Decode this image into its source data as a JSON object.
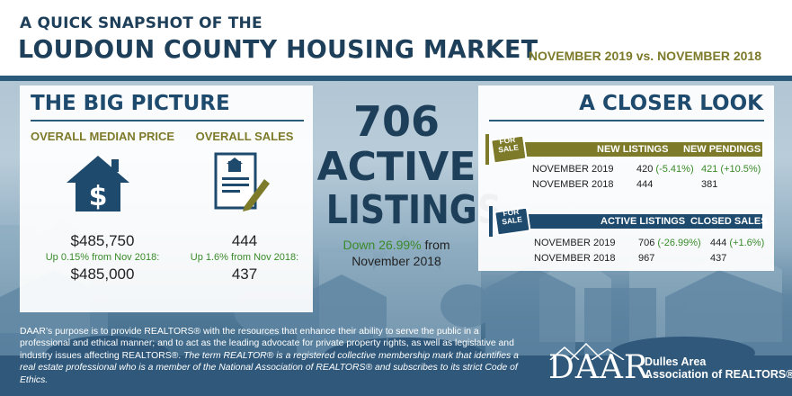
{
  "header": {
    "subtitle": "A QUICK SNAPSHOT OF THE",
    "title": "LOUDOUN COUNTY HOUSING MARKET",
    "date_range": "NOVEMBER 2019 vs. NOVEMBER 2018"
  },
  "big_picture": {
    "title": "THE BIG PICTURE",
    "median_price": {
      "label": "OVERALL MEDIAN PRICE",
      "current": "$485,750",
      "change_note": "Up 0.15% from Nov 2018:",
      "previous": "$485,000"
    },
    "sales": {
      "label": "OVERALL SALES",
      "current": "444",
      "change_note": "Up 1.6% from Nov 2018:",
      "previous": "437"
    }
  },
  "active_listings": {
    "number": "706",
    "line1": "ACTIVE",
    "line2": "LISTINGS",
    "change": "Down 26.99%",
    "from_word": " from",
    "period": "November 2018"
  },
  "closer_look": {
    "title": "A CLOSER LOOK",
    "sign_text": "FOR SALE",
    "group1": {
      "col1": "NEW LISTINGS",
      "col2": "NEW PENDINGS",
      "rows": [
        {
          "period": "NOVEMBER  2019",
          "v1": "420 (-5.41%)",
          "v2": "421 (+10.5%)"
        },
        {
          "period": "NOVEMBER  2018",
          "v1": "444",
          "v2": "381"
        }
      ]
    },
    "group2": {
      "col1": "ACTIVE LISTINGS",
      "col2": "CLOSED SALES",
      "rows": [
        {
          "period": "NOVEMBER  2019",
          "v1": "706 (-26.99%)",
          "v2": "444 (+1.6%)"
        },
        {
          "period": "NOVEMBER  2018",
          "v1": "967",
          "v2": "437"
        }
      ]
    }
  },
  "footer": {
    "purpose": "DAAR’s purpose is to provide REALTORS® with the resources that enhance their ability to serve the public in a professional and ethical manner; and to act as the leading advocate for private property rights, as well as legislative and industry issues affecting REALTORS®.",
    "trademark": "The term REALTOR® is a registered collective membership mark that identifies a real estate professional who is a member of the National Association of REALTORS® and subscribes to its strict Code of Ethics."
  },
  "logo": {
    "wordmark": "DAAR",
    "org_line1": "Dulles Area",
    "org_line2": "Association of REALTORS®"
  },
  "colors": {
    "navy": "#1e4a6e",
    "olive": "#7d7a2a",
    "green": "#3a8a2a"
  }
}
